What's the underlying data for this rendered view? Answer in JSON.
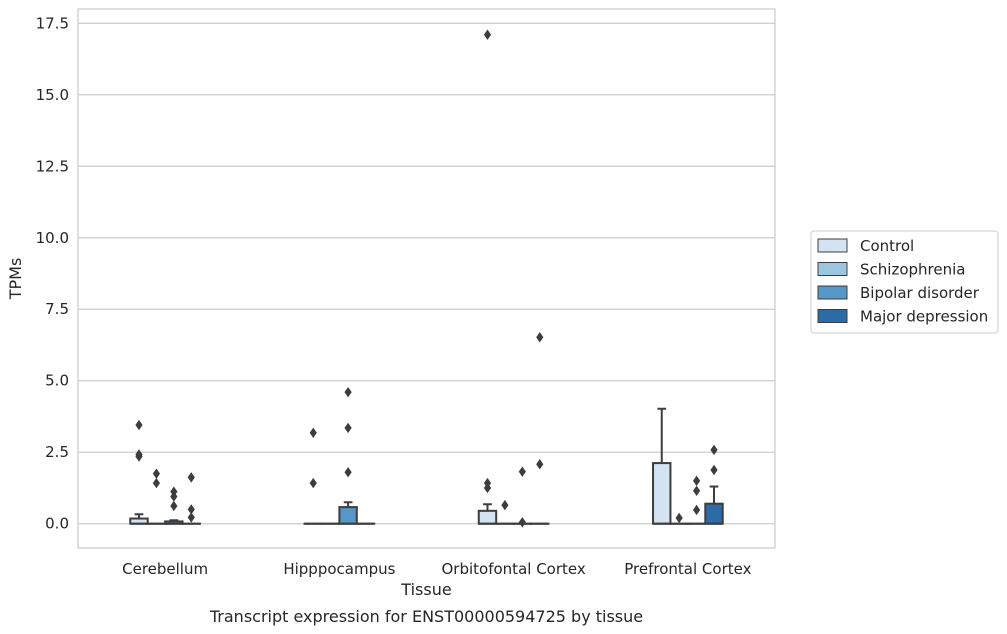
{
  "chart_data": {
    "type": "box",
    "title": "",
    "caption": "Transcript expression for ENST00000594725 by tissue",
    "xlabel": "Tissue",
    "ylabel": "TPMs",
    "ylim": [
      -0.85,
      18.0
    ],
    "yticks": [
      "0.0",
      "2.5",
      "5.0",
      "7.5",
      "10.0",
      "12.5",
      "15.0",
      "17.5"
    ],
    "ytick_values": [
      0,
      2.5,
      5,
      7.5,
      10,
      12.5,
      15,
      17.5
    ],
    "grid": "horizontal",
    "legend_position": "right",
    "categories": [
      "Cerebellum",
      "Hipppocampus",
      "Orbitofontal Cortex",
      "Prefrontal Cortex"
    ],
    "series": [
      {
        "name": "Control",
        "color": "#d4e3f2",
        "boxes": [
          {
            "q1": 0,
            "median": 0,
            "q3": 0.18,
            "whisker_low": 0,
            "whisker_high": 0.33,
            "outliers": [
              3.45,
              2.42,
              2.35
            ]
          },
          {
            "q1": 0,
            "median": 0,
            "q3": 0,
            "whisker_low": 0,
            "whisker_high": 0,
            "outliers": [
              3.18,
              1.42
            ]
          },
          {
            "q1": 0,
            "median": 0,
            "q3": 0.45,
            "whisker_low": 0,
            "whisker_high": 0.68,
            "outliers": [
              17.1,
              1.42,
              1.25
            ]
          },
          {
            "q1": 0,
            "median": 0,
            "q3": 2.12,
            "whisker_low": 0,
            "whisker_high": 4.02,
            "outliers": []
          }
        ]
      },
      {
        "name": "Schizophrenia",
        "color": "#9ac6df",
        "boxes": [
          {
            "q1": 0,
            "median": 0,
            "q3": 0,
            "whisker_low": 0,
            "whisker_high": 0,
            "outliers": [
              1.75,
              1.42
            ]
          },
          {
            "q1": 0,
            "median": 0,
            "q3": 0,
            "whisker_low": 0,
            "whisker_high": 0,
            "outliers": []
          },
          {
            "q1": 0,
            "median": 0,
            "q3": 0,
            "whisker_low": 0,
            "whisker_high": 0,
            "outliers": [
              0.65
            ]
          },
          {
            "q1": 0,
            "median": 0,
            "q3": 0,
            "whisker_low": 0,
            "whisker_high": 0,
            "outliers": [
              0.2
            ]
          }
        ]
      },
      {
        "name": "Bipolar disorder",
        "color": "#5597c6",
        "boxes": [
          {
            "q1": 0,
            "median": 0,
            "q3": 0.08,
            "whisker_low": 0,
            "whisker_high": 0.12,
            "outliers": [
              1.12,
              0.95,
              0.62
            ]
          },
          {
            "q1": 0,
            "median": 0,
            "q3": 0.58,
            "whisker_low": 0,
            "whisker_high": 0.75,
            "outliers": [
              4.6,
              3.35,
              1.8
            ]
          },
          {
            "q1": 0,
            "median": 0,
            "q3": 0,
            "whisker_low": 0,
            "whisker_high": 0,
            "outliers": [
              1.82,
              0.05
            ]
          },
          {
            "q1": 0,
            "median": 0,
            "q3": 0,
            "whisker_low": 0,
            "whisker_high": 0,
            "outliers": [
              1.5,
              1.15,
              0.48
            ]
          }
        ]
      },
      {
        "name": "Major depression",
        "color": "#2b6ca8",
        "boxes": [
          {
            "q1": 0,
            "median": 0,
            "q3": 0,
            "whisker_low": 0,
            "whisker_high": 0,
            "outliers": [
              1.62,
              0.5,
              0.22
            ]
          },
          {
            "q1": 0,
            "median": 0,
            "q3": 0,
            "whisker_low": 0,
            "whisker_high": 0,
            "outliers": []
          },
          {
            "q1": 0,
            "median": 0,
            "q3": 0,
            "whisker_low": 0,
            "whisker_high": 0,
            "outliers": [
              6.52,
              2.08
            ]
          },
          {
            "q1": 0,
            "median": 0,
            "q3": 0.7,
            "whisker_low": 0,
            "whisker_high": 1.3,
            "outliers": [
              2.58,
              1.88
            ]
          }
        ]
      }
    ]
  }
}
